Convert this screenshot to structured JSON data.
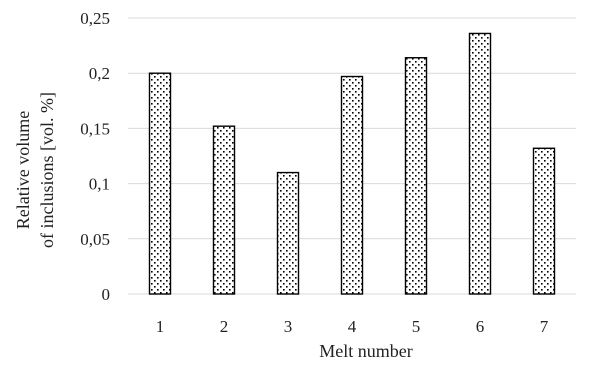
{
  "chart_data": {
    "type": "bar",
    "title": "",
    "xlabel": "Melt number",
    "ylabel_lines": [
      "Relative volume",
      "of inclusions [vol. %]"
    ],
    "categories": [
      "1",
      "2",
      "3",
      "4",
      "5",
      "6",
      "7"
    ],
    "values": [
      0.2,
      0.152,
      0.11,
      0.197,
      0.214,
      0.236,
      0.132
    ],
    "ylim": [
      0,
      0.25
    ],
    "yticks": [
      0,
      0.05,
      0.1,
      0.15,
      0.2,
      0.25
    ],
    "ytick_labels": [
      "0",
      "0,05",
      "0,1",
      "0,15",
      "0,2",
      "0,25"
    ],
    "grid": true,
    "legend": "none",
    "bar_pattern": "dotted",
    "colors": {
      "bar_fill": "#ffffff",
      "bar_edge": "#000000",
      "dots": "#000000",
      "grid": "#d9d9d9"
    }
  }
}
